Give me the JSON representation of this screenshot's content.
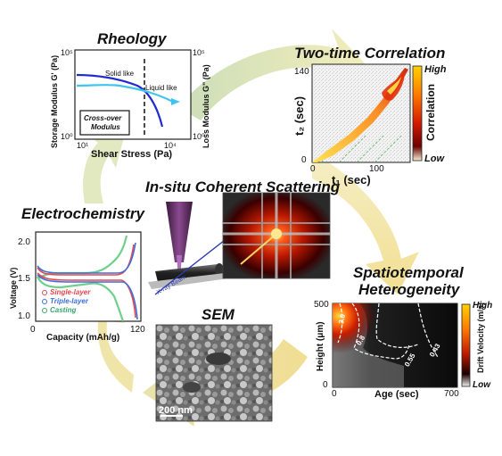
{
  "colors": {
    "arrow": "#ede8b5",
    "arrow_dark": "#e4d991",
    "heat_high": "#ffe24a",
    "heat_mid": "#e23a10",
    "heat_low": "#3a0000"
  },
  "rheology": {
    "title": "Rheology",
    "ylabel_left": "Storage Modulus G' (Pa)",
    "ylabel_right": "Loss Modulus G\" (Pa)",
    "xlabel": "Shear Stress (Pa)",
    "xtick_left": "10¹",
    "xtick_right": "10⁴",
    "ytick_top_left": "10⁵",
    "ytick_bottom_left": "10⁰",
    "ytick_top_right": "10⁵",
    "ytick_bottom_right": "10⁰",
    "solid_label": "Solid like",
    "liquid_label": "Liquid like",
    "box_line1": "Cross-over",
    "box_line2": "Modulus"
  },
  "correlation": {
    "title": "Two-time Correlation",
    "ylabel": "t₂ (sec)",
    "xlabel": "t₁ (sec)",
    "ytick_140": "140",
    "ytick_0": "0",
    "xtick_0": "0",
    "xtick_100": "100",
    "cbar_high": "High",
    "cbar_low": "Low",
    "cbar_label": "Correlation"
  },
  "scattering": {
    "title": "In-situ Coherent Scattering",
    "beam_label": "X-ray Beam"
  },
  "electrochem": {
    "title": "Electrochemistry",
    "ylabel": "Voltage (V)",
    "xlabel": "Capacity (mAh/g)",
    "yticks": [
      "2.0",
      "1.5",
      "1.0"
    ],
    "xtick_0": "0",
    "xtick_120": "120",
    "legend": [
      {
        "label": "Single-layer",
        "color": "#e8474f"
      },
      {
        "label": "Triple-layer",
        "color": "#3f6fd8"
      },
      {
        "label": "Casting",
        "color": "#3aa56b"
      }
    ]
  },
  "sem": {
    "title": "SEM",
    "scale_label": "200 nm"
  },
  "spatio": {
    "title_line1": "Spatiotemporal",
    "title_line2": "Heterogeneity",
    "ylabel": "Height (μm)",
    "xlabel": "Age (sec)",
    "ytick_500": "500",
    "ytick_0": "0",
    "xtick_0": "0",
    "xtick_700": "700",
    "contours": [
      "3.0",
      "0.8",
      "0.55",
      "0.43"
    ],
    "cbar_high": "High",
    "cbar_low": "Low",
    "cbar_label": "Drift Velocity (m/s)"
  }
}
